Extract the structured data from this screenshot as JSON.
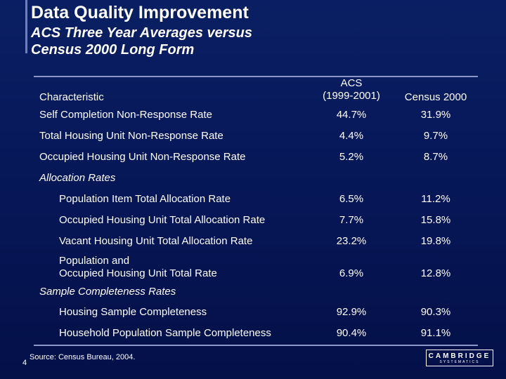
{
  "slide": {
    "title": "Data Quality Improvement",
    "subtitle_line1": "ACS Three Year Averages versus",
    "subtitle_line2": "Census 2000 Long Form",
    "page_number": "4",
    "source": "Source:  Census Bureau, 2004."
  },
  "table": {
    "headers": {
      "characteristic": "Characteristic",
      "acs_line1": "ACS",
      "acs_line2": "(1999-2001)",
      "census": "Census 2000"
    },
    "rows": [
      {
        "label": "Self Completion Non-Response Rate",
        "acs": "44.7%",
        "census": "31.9%"
      },
      {
        "label": "Total Housing Unit Non-Response Rate",
        "acs": "4.4%",
        "census": "9.7%"
      },
      {
        "label": "Occupied Housing Unit Non-Response Rate",
        "acs": "5.2%",
        "census": "8.7%"
      }
    ],
    "allocation": {
      "heading": "Allocation Rates",
      "rows": [
        {
          "label": "Population Item Total Allocation Rate",
          "acs": "6.5%",
          "census": "11.2%"
        },
        {
          "label": "Occupied Housing Unit Total Allocation Rate",
          "acs": "7.7%",
          "census": "15.8%"
        },
        {
          "label": "Vacant Housing Unit Total Allocation Rate",
          "acs": "23.2%",
          "census": "19.8%"
        },
        {
          "label_line1": "Population and",
          "label_line2": "Occupied Housing Unit Total Rate",
          "acs": "6.9%",
          "census": "12.8%"
        }
      ]
    },
    "completeness": {
      "heading": "Sample Completeness Rates",
      "rows": [
        {
          "label": "Housing Sample Completeness",
          "acs": "92.9%",
          "census": "90.3%"
        },
        {
          "label": "Household Population Sample Completeness",
          "acs": "90.4%",
          "census": "91.1%"
        }
      ]
    }
  },
  "logo": {
    "name": "CAMBRIDGE",
    "sub": "SYSTEMATICS"
  }
}
